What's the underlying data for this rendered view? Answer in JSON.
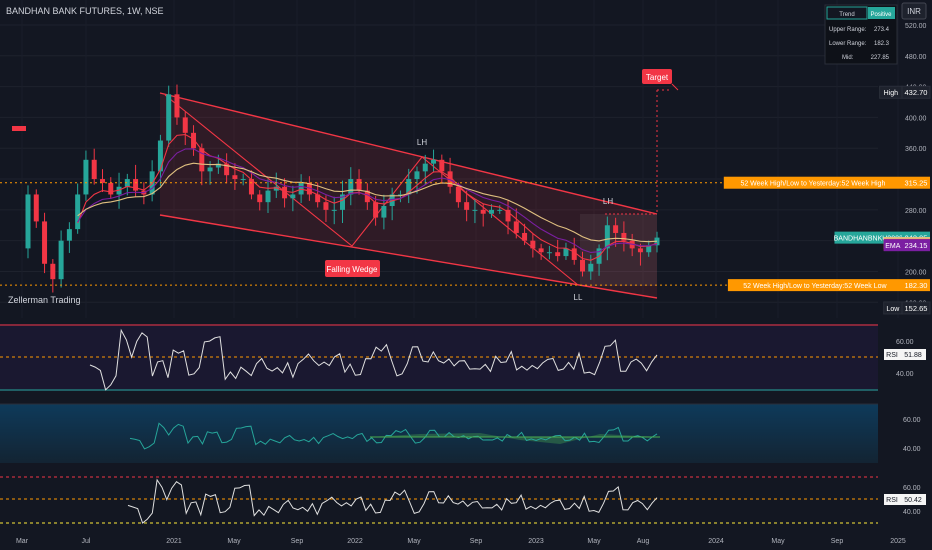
{
  "header": {
    "title": "BANDHAN BANK FUTURES, 1W, NSE",
    "currency": "INR"
  },
  "watermark": "Zellerman Trading",
  "trend_table": {
    "header_left": "Trend",
    "header_right": "Positive",
    "rows": [
      {
        "label": "Upper Range:",
        "value": "273.4"
      },
      {
        "label": "Lower Range:",
        "value": "182.3"
      },
      {
        "label": "Mid:",
        "value": "227.85"
      }
    ]
  },
  "price_tags": [
    {
      "text": "High",
      "value": "432.70",
      "price": 432.7,
      "color": "#1e222d",
      "border": "#2a2e39"
    },
    {
      "text": "52 Week High/Low to Yesterday:52 Week High",
      "value": "315.25",
      "price": 315.25,
      "color": "#ff9800"
    },
    {
      "text": "BANDHANBNKU2023",
      "value": "243.95",
      "price": 243.95,
      "color": "#26a69a"
    },
    {
      "text": "EMA",
      "value": "236.99",
      "price": 236.99,
      "color": "#e0c080",
      "textcolor": "#131722"
    },
    {
      "text": "EMA",
      "value": "234.50",
      "price": 234.5,
      "color": "#f23645"
    },
    {
      "text": "EMA",
      "value": "234.15",
      "price": 234.15,
      "color": "#7b1fa2"
    },
    {
      "text": "52 Week High/Low to Yesterday:52 Week Low",
      "value": "182.30",
      "price": 182.3,
      "color": "#ff9800"
    },
    {
      "text": "Low",
      "value": "152.65",
      "price": 152.65,
      "color": "#1e222d",
      "border": "#2a2e39"
    }
  ],
  "annotations": {
    "target": "Target",
    "falling_wedge": "Falling Wedge",
    "lh1": "LH",
    "lh2": "LH",
    "ll": "LL"
  },
  "rsi_panels": [
    {
      "label": "RSI",
      "value": "51.88",
      "value_num": 51.88
    },
    {
      "label": "",
      "value": "",
      "value_num": 50
    },
    {
      "label": "RSI",
      "value": "50.42",
      "value_num": 50.42
    }
  ],
  "colors": {
    "background": "#131722",
    "up": "#26a69a",
    "down": "#f23645",
    "channel": "#f23645",
    "orange": "#ff9800",
    "ema_fast": "#f23645",
    "ema_mid": "#7b1fa2",
    "ema_slow": "#e0c080"
  },
  "chart_data": {
    "type": "candlestick",
    "title": "BANDHAN BANK FUTURES, 1W, NSE",
    "x_ticks": [
      "Mar",
      "Jul",
      "2021",
      "May",
      "Sep",
      "2022",
      "May",
      "Sep",
      "2023",
      "May",
      "Aug",
      "2024",
      "May",
      "Sep",
      "2025"
    ],
    "y_ticks": [
      160,
      200,
      240,
      280,
      320,
      360,
      400,
      440,
      480,
      520
    ],
    "ylim": [
      150,
      535
    ],
    "series": [
      {
        "name": "Close",
        "values": [
          300,
          265,
          210,
          190,
          240,
          255,
          300,
          345,
          320,
          315,
          300,
          310,
          320,
          305,
          300,
          330,
          370,
          430,
          400,
          380,
          360,
          330,
          335,
          340,
          325,
          320,
          320,
          300,
          290,
          305,
          310,
          295,
          300,
          315,
          300,
          290,
          280,
          280,
          300,
          320,
          305,
          290,
          270,
          285,
          300,
          300,
          320,
          330,
          340,
          345,
          330,
          310,
          290,
          280,
          280,
          275,
          280,
          280,
          265,
          250,
          240,
          230,
          225,
          225,
          220,
          230,
          215,
          200,
          210,
          230,
          260,
          250,
          240,
          230,
          225,
          234,
          244
        ]
      }
    ],
    "reference_lines": [
      {
        "label": "52 Week High",
        "value": 315.25
      },
      {
        "label": "52 Week Low",
        "value": 182.3
      }
    ],
    "rsi_levels": [
      60,
      40
    ]
  }
}
